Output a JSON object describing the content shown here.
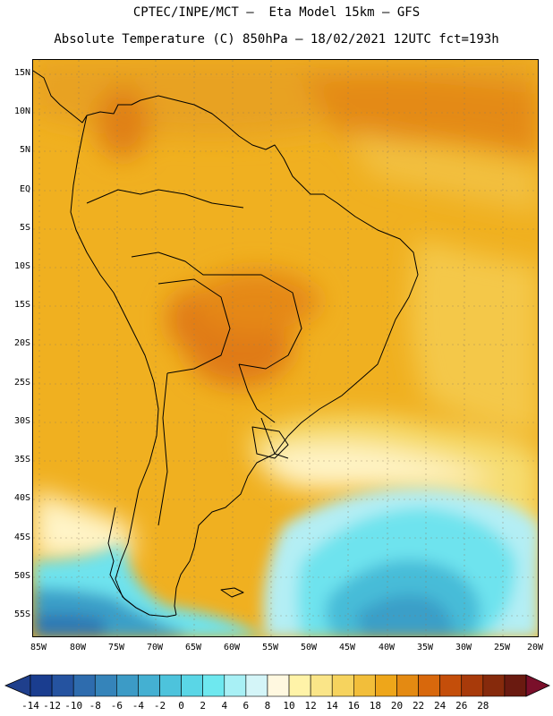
{
  "header": {
    "line1": "CPTEC/INPE/MCT —  Eta Model 15km — GFS",
    "line2": "Absolute Temperature (C) 850hPa — 18/02/2021 12UTC fct=193h"
  },
  "map": {
    "lat_labels": [
      "15N",
      "10N",
      "5N",
      "EQ",
      "5S",
      "10S",
      "15S",
      "20S",
      "25S",
      "30S",
      "35S",
      "40S",
      "45S",
      "50S",
      "55S"
    ],
    "lon_labels": [
      "85W",
      "80W",
      "75W",
      "70W",
      "65W",
      "60W",
      "55W",
      "50W",
      "45W",
      "40W",
      "35W",
      "30W",
      "25W",
      "20W"
    ]
  },
  "colorbar": {
    "labels": [
      "-14",
      "-12",
      "-10",
      "-8",
      "-6",
      "-4",
      "-2",
      "0",
      "2",
      "4",
      "6",
      "8",
      "10",
      "12",
      "14",
      "16",
      "18",
      "20",
      "22",
      "24",
      "26",
      "28"
    ],
    "colors": [
      "#1a3d8f",
      "#2553a0",
      "#2e6cae",
      "#3584ba",
      "#3c9bc6",
      "#44b0d2",
      "#4dc3dc",
      "#5ad6e6",
      "#6ee8ef",
      "#a8f0f5",
      "#d4f5f8",
      "#fff8e0",
      "#fff3a8",
      "#fae588",
      "#f6d35e",
      "#f2be3a",
      "#eea61a",
      "#e48a12",
      "#d8680c",
      "#c44e0a",
      "#a83a0a",
      "#862a0c",
      "#6a1a10"
    ],
    "under_color": "#1f3f8c",
    "over_color": "#7a0f2a"
  }
}
